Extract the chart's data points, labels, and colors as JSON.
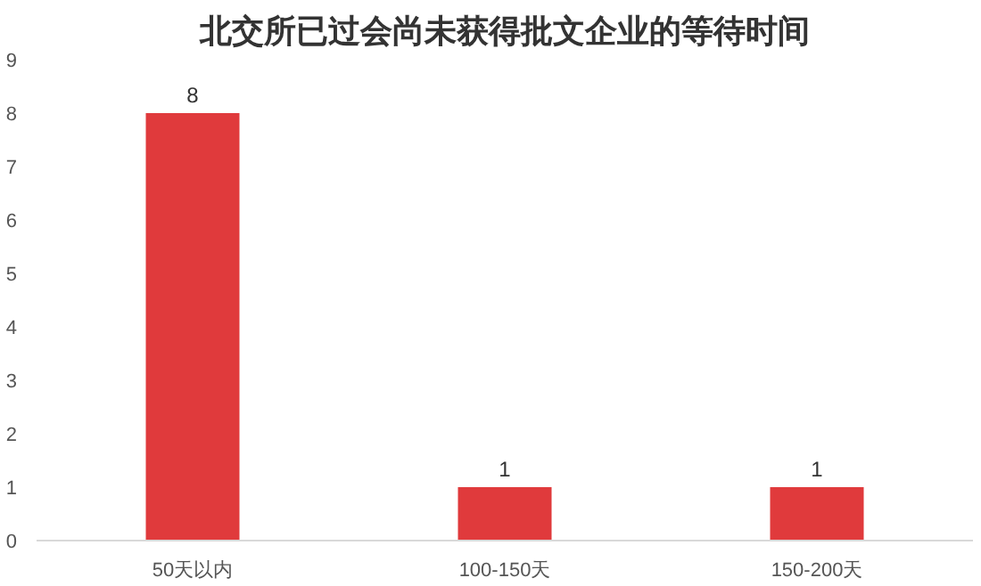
{
  "chart_data": {
    "type": "bar",
    "title": "北交所已过会尚未获得批文企业的等待时间",
    "categories": [
      "50天以内",
      "100-150天",
      "150-200天"
    ],
    "values": [
      8,
      1,
      1
    ],
    "color": "#e03a3c",
    "ylim": [
      0,
      9
    ],
    "yticks": [
      0,
      1,
      2,
      3,
      4,
      5,
      6,
      7,
      8,
      9
    ],
    "grid": false,
    "data_labels": true
  }
}
